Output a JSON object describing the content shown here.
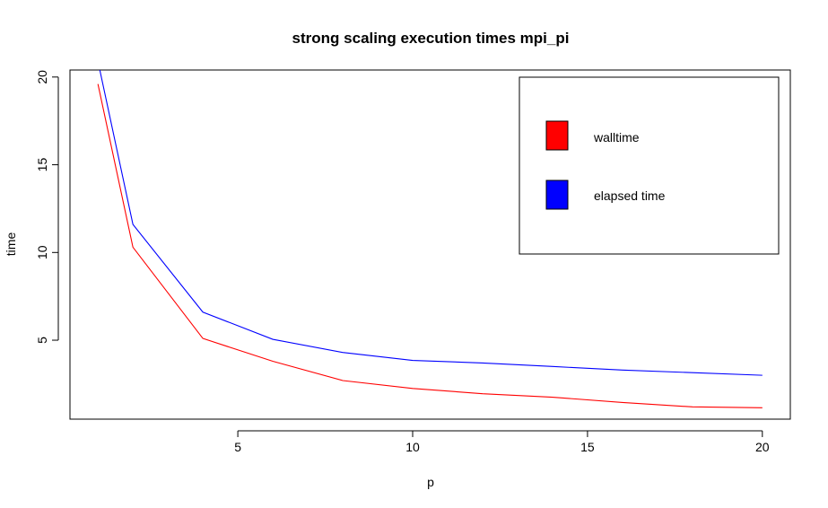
{
  "chart_data": {
    "type": "line",
    "title": "strong scaling execution times mpi_pi",
    "xlabel": "p",
    "ylabel": "time",
    "xlim": [
      0.2,
      20.8
    ],
    "ylim": [
      0.5,
      20.4
    ],
    "xticks": [
      5,
      10,
      15,
      20
    ],
    "yticks": [
      5,
      10,
      15,
      20
    ],
    "grid": false,
    "legend_position": "top-right",
    "x": [
      1,
      2,
      4,
      6,
      8,
      10,
      12,
      14,
      16,
      18,
      20
    ],
    "series": [
      {
        "name": "walltime",
        "color": "#ff0000",
        "values": [
          19.6,
          10.3,
          5.1,
          3.8,
          2.7,
          2.25,
          1.95,
          1.75,
          1.45,
          1.2,
          1.15
        ]
      },
      {
        "name": "elapsed time",
        "color": "#0000ff",
        "values": [
          20.9,
          11.6,
          6.6,
          5.05,
          4.3,
          3.85,
          3.7,
          3.5,
          3.3,
          3.15,
          3.0
        ]
      }
    ]
  }
}
